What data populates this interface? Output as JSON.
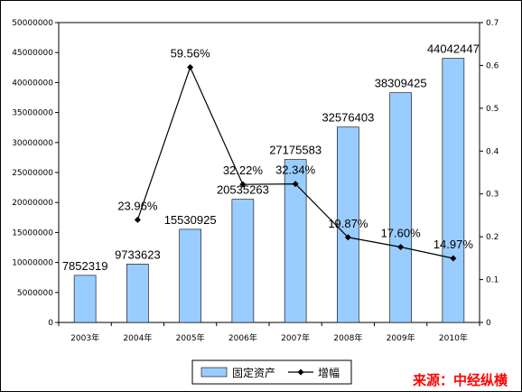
{
  "chart_data": {
    "type": "bar+line",
    "categories": [
      "2003年",
      "2004年",
      "2005年",
      "2006年",
      "2007年",
      "2008年",
      "2009年",
      "2010年"
    ],
    "bar_series": {
      "name": "固定资产",
      "values": [
        7852319,
        9733623,
        15530925,
        20535263,
        27175583,
        32576403,
        38309425,
        44042447
      ],
      "labels": [
        "7852319",
        "9733623",
        "15530925",
        "20535263",
        "27175583",
        "32576403",
        "38309425",
        "44042447"
      ],
      "color": "#99ccff"
    },
    "line_series": {
      "name": "增幅",
      "x_index": [
        1,
        2,
        3,
        4,
        5,
        6,
        7
      ],
      "values": [
        0.2396,
        0.5956,
        0.3222,
        0.3234,
        0.1987,
        0.176,
        0.1497
      ],
      "labels": [
        "23.96%",
        "59.56%",
        "32.22%",
        "32.34%",
        "19.87%",
        "17.60%",
        "14.97%"
      ],
      "color": "#000000"
    },
    "y_left": {
      "min": 0,
      "max": 50000000,
      "ticks": [
        "0",
        "5000000",
        "10000000",
        "15000000",
        "20000000",
        "25000000",
        "30000000",
        "35000000",
        "40000000",
        "45000000",
        "50000000"
      ]
    },
    "y_right": {
      "min": 0,
      "max": 0.7,
      "ticks": [
        "0",
        "0.1",
        "0.2",
        "0.3",
        "0.4",
        "0.5",
        "0.6",
        "0.7"
      ]
    },
    "legend_position": "bottom",
    "grid": false
  },
  "source_text": "来源：中经纵横"
}
